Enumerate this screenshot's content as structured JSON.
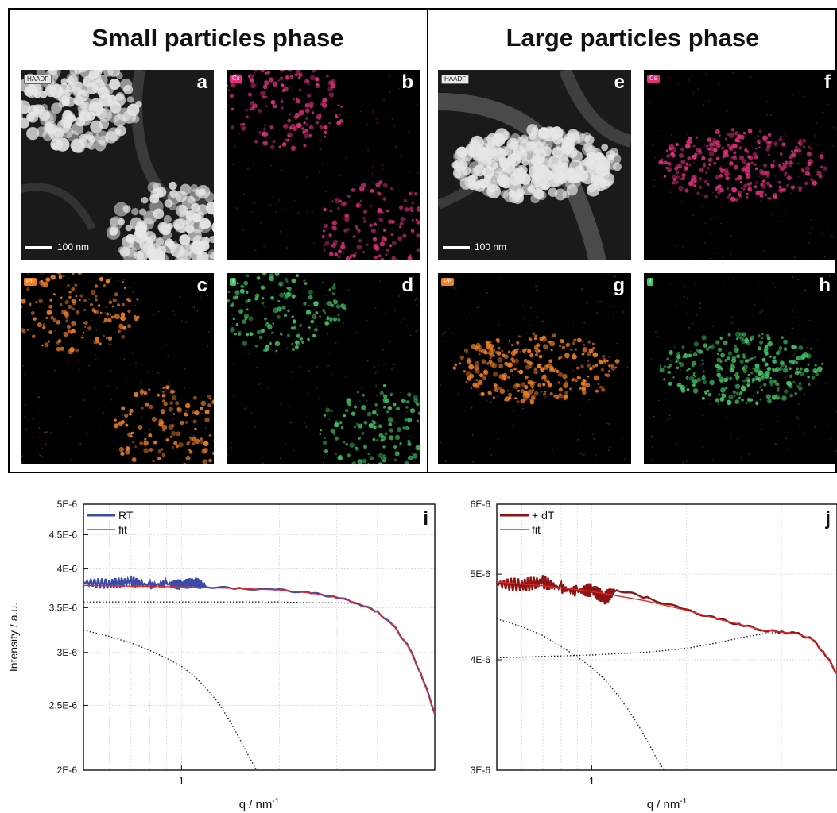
{
  "phases": [
    {
      "title": "Small particles phase"
    },
    {
      "title": "Large particles phase"
    }
  ],
  "panels": [
    {
      "letter": "a",
      "tag": "HAADF",
      "type": "haadf",
      "color": "#e6e6e6",
      "scale": "100 nm"
    },
    {
      "letter": "b",
      "tag": "Cs",
      "type": "map",
      "color": "#e0307e"
    },
    {
      "letter": "c",
      "tag": "Pb",
      "type": "map",
      "color": "#f07f24"
    },
    {
      "letter": "d",
      "tag": "I",
      "type": "map",
      "color": "#3fc466"
    },
    {
      "letter": "e",
      "tag": "HAADF",
      "type": "haadf",
      "color": "#e6e6e6",
      "scale": "100 nm"
    },
    {
      "letter": "f",
      "tag": "Cs",
      "type": "map",
      "color": "#e0307e"
    },
    {
      "letter": "g",
      "tag": "Pb",
      "type": "map",
      "color": "#f07f24"
    },
    {
      "letter": "h",
      "tag": "I",
      "type": "map",
      "color": "#3fc466"
    }
  ],
  "chart_data": [
    {
      "panel_letter": "i",
      "type": "line",
      "xlabel": "q / nm",
      "xlabel_superscript": "-1",
      "ylabel": "Intensity / a.u.",
      "xscale": "log",
      "yscale": "log",
      "xlim": [
        0.5,
        6.0
      ],
      "ylim": [
        2e-06,
        5e-06
      ],
      "xticks": [
        {
          "value": 1,
          "label": "1"
        }
      ],
      "yticks": [
        {
          "value": 2e-06,
          "label": "2E-6"
        },
        {
          "value": 2.5e-06,
          "label": "2.5E-6"
        },
        {
          "value": 3e-06,
          "label": "3E-6"
        },
        {
          "value": 3.5e-06,
          "label": "3.5E-6"
        },
        {
          "value": 4e-06,
          "label": "4E-6"
        },
        {
          "value": 4.5e-06,
          "label": "4.5E-6"
        },
        {
          "value": 5e-06,
          "label": "5E-6"
        }
      ],
      "grid": true,
      "legend_position": "top-left",
      "series": [
        {
          "name": "RT",
          "style": "data",
          "color": "#3c4aa8",
          "x": [
            0.5,
            0.6,
            0.7,
            0.8,
            0.9,
            1.0,
            1.1,
            1.2,
            1.5,
            2.0,
            2.5,
            3.0,
            3.5,
            4.0,
            4.5,
            5.0,
            5.5,
            6.0
          ],
          "y": [
            3.82e-06,
            3.8e-06,
            3.83e-06,
            3.78e-06,
            3.8e-06,
            3.79e-06,
            3.82e-06,
            3.76e-06,
            3.74e-06,
            3.72e-06,
            3.68e-06,
            3.63e-06,
            3.55e-06,
            3.45e-06,
            3.28e-06,
            3.05e-06,
            2.75e-06,
            2.43e-06
          ]
        },
        {
          "name": "fit",
          "style": "fit",
          "color": "#e02a2a",
          "x": [
            0.5,
            0.7,
            1.0,
            1.5,
            2.0,
            2.5,
            3.0,
            3.5,
            4.0,
            4.5,
            5.0,
            5.5,
            6.0
          ],
          "y": [
            3.78e-06,
            3.77e-06,
            3.76e-06,
            3.74e-06,
            3.72e-06,
            3.68e-06,
            3.63e-06,
            3.55e-06,
            3.45e-06,
            3.28e-06,
            3.05e-06,
            2.75e-06,
            2.43e-06
          ]
        },
        {
          "style": "component",
          "color": "#222222",
          "x": [
            0.5,
            1.0,
            1.5,
            2.0,
            2.5,
            3.0,
            3.5
          ],
          "y": [
            3.57e-06,
            3.57e-06,
            3.57e-06,
            3.57e-06,
            3.56e-06,
            3.56e-06,
            3.55e-06
          ]
        },
        {
          "style": "component",
          "color": "#222222",
          "x": [
            0.5,
            0.6,
            0.7,
            0.8,
            0.9,
            1.0,
            1.1,
            1.2,
            1.3,
            1.4,
            1.5,
            1.6,
            1.7
          ],
          "y": [
            3.24e-06,
            3.17e-06,
            3.1e-06,
            3.02e-06,
            2.94e-06,
            2.86e-06,
            2.76e-06,
            2.64e-06,
            2.52e-06,
            2.38e-06,
            2.24e-06,
            2.11e-06,
            2e-06
          ]
        }
      ]
    },
    {
      "panel_letter": "j",
      "type": "line",
      "xlabel": "q / nm",
      "xlabel_superscript": "-1",
      "ylabel": "",
      "xscale": "log",
      "yscale": "log",
      "xlim": [
        0.5,
        6.0
      ],
      "ylim": [
        3e-06,
        6e-06
      ],
      "xticks": [
        {
          "value": 1,
          "label": "1"
        }
      ],
      "yticks": [
        {
          "value": 3e-06,
          "label": "3E-6"
        },
        {
          "value": 4e-06,
          "label": "4E-6"
        },
        {
          "value": 5e-06,
          "label": "5E-6"
        },
        {
          "value": 6e-06,
          "label": "6E-6"
        }
      ],
      "grid": true,
      "legend_position": "top-left",
      "series": [
        {
          "name": "+ dT",
          "style": "data",
          "color": "#8e1414",
          "x": [
            0.5,
            0.6,
            0.7,
            0.8,
            0.9,
            1.0,
            1.1,
            1.2,
            1.5,
            2.0,
            2.5,
            3.0,
            3.5,
            4.0,
            4.5,
            5.0,
            5.5,
            6.0
          ],
          "y": [
            4.88e-06,
            4.86e-06,
            4.9e-06,
            4.82e-06,
            4.78e-06,
            4.8e-06,
            4.7e-06,
            4.8e-06,
            4.7e-06,
            4.55e-06,
            4.45e-06,
            4.38e-06,
            4.32e-06,
            4.3e-06,
            4.28e-06,
            4.22e-06,
            4.06e-06,
            3.86e-06
          ]
        },
        {
          "name": "fit",
          "style": "fit",
          "color": "#e02a2a",
          "x": [
            0.5,
            0.7,
            1.0,
            1.5,
            2.0,
            2.5,
            3.0,
            3.5,
            4.0,
            4.5,
            5.0,
            5.5,
            6.0
          ],
          "y": [
            4.9e-06,
            4.85e-06,
            4.78e-06,
            4.66e-06,
            4.55e-06,
            4.45e-06,
            4.38e-06,
            4.32e-06,
            4.3e-06,
            4.28e-06,
            4.22e-06,
            4.06e-06,
            3.86e-06
          ]
        },
        {
          "style": "component",
          "color": "#222222",
          "x": [
            0.5,
            1.0,
            1.5,
            2.0,
            2.5,
            3.0,
            3.5,
            4.0
          ],
          "y": [
            4.02e-06,
            4.05e-06,
            4.08e-06,
            4.12e-06,
            4.18e-06,
            4.24e-06,
            4.28e-06,
            4.3e-06
          ]
        },
        {
          "style": "component",
          "color": "#222222",
          "x": [
            0.5,
            0.6,
            0.7,
            0.8,
            0.9,
            1.0,
            1.1,
            1.2,
            1.3,
            1.4,
            1.5,
            1.6,
            1.7
          ],
          "y": [
            4.45e-06,
            4.36e-06,
            4.26e-06,
            4.14e-06,
            4.03e-06,
            3.92e-06,
            3.8e-06,
            3.66e-06,
            3.52e-06,
            3.38e-06,
            3.24e-06,
            3.1e-06,
            3e-06
          ]
        }
      ]
    }
  ]
}
